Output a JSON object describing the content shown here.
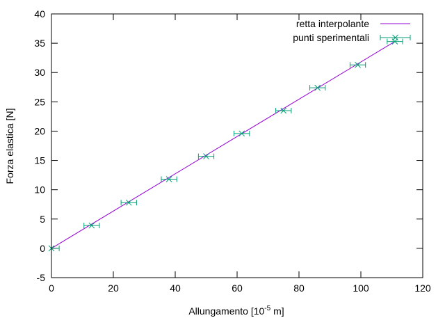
{
  "chart_data": {
    "type": "line",
    "xlabel": {
      "main": "Allungamento [10",
      "exponent": "-5",
      "tail": " m]"
    },
    "ylabel": "Forza elastica [N]",
    "xlim": [
      0,
      120
    ],
    "ylim": [
      -5,
      40
    ],
    "x_ticks": [
      0,
      20,
      40,
      60,
      80,
      100,
      120
    ],
    "y_ticks": [
      -5,
      0,
      5,
      10,
      15,
      20,
      25,
      30,
      35,
      40
    ],
    "grid": false,
    "legend_position": "top-right",
    "series": [
      {
        "name": "retta interpolante",
        "kind": "line",
        "color": "#9400d3",
        "x": [
          0,
          111
        ],
        "y": [
          0,
          35.3
        ]
      },
      {
        "name": "punti sperimentali",
        "kind": "points-with-x-errorbars",
        "color": "#009e73",
        "marker": "x",
        "x": [
          0,
          13,
          25,
          38,
          50,
          61.5,
          75,
          86,
          99,
          111
        ],
        "y": [
          0,
          3.9,
          7.8,
          11.8,
          15.7,
          19.6,
          23.5,
          27.4,
          31.3,
          35.3
        ]
      }
    ]
  }
}
